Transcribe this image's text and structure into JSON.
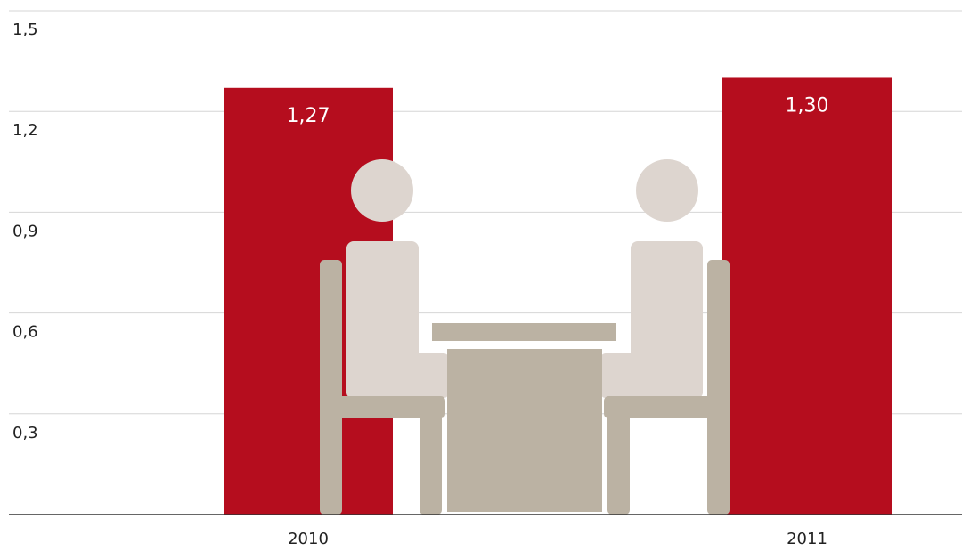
{
  "chart_data": {
    "type": "bar",
    "categories": [
      "2010",
      "2011"
    ],
    "values": [
      1.27,
      1.3
    ],
    "value_labels": [
      "1,27",
      "1,30"
    ],
    "color": "#b50d1e",
    "ylim": [
      0,
      1.5
    ],
    "yticks": [
      {
        "value": 0.3,
        "label": "0,3"
      },
      {
        "value": 0.6,
        "label": "0,6"
      },
      {
        "value": 0.9,
        "label": "0,9"
      },
      {
        "value": 1.2,
        "label": "1,2"
      },
      {
        "value": 1.5,
        "label": "1,5"
      }
    ],
    "grid": true
  }
}
